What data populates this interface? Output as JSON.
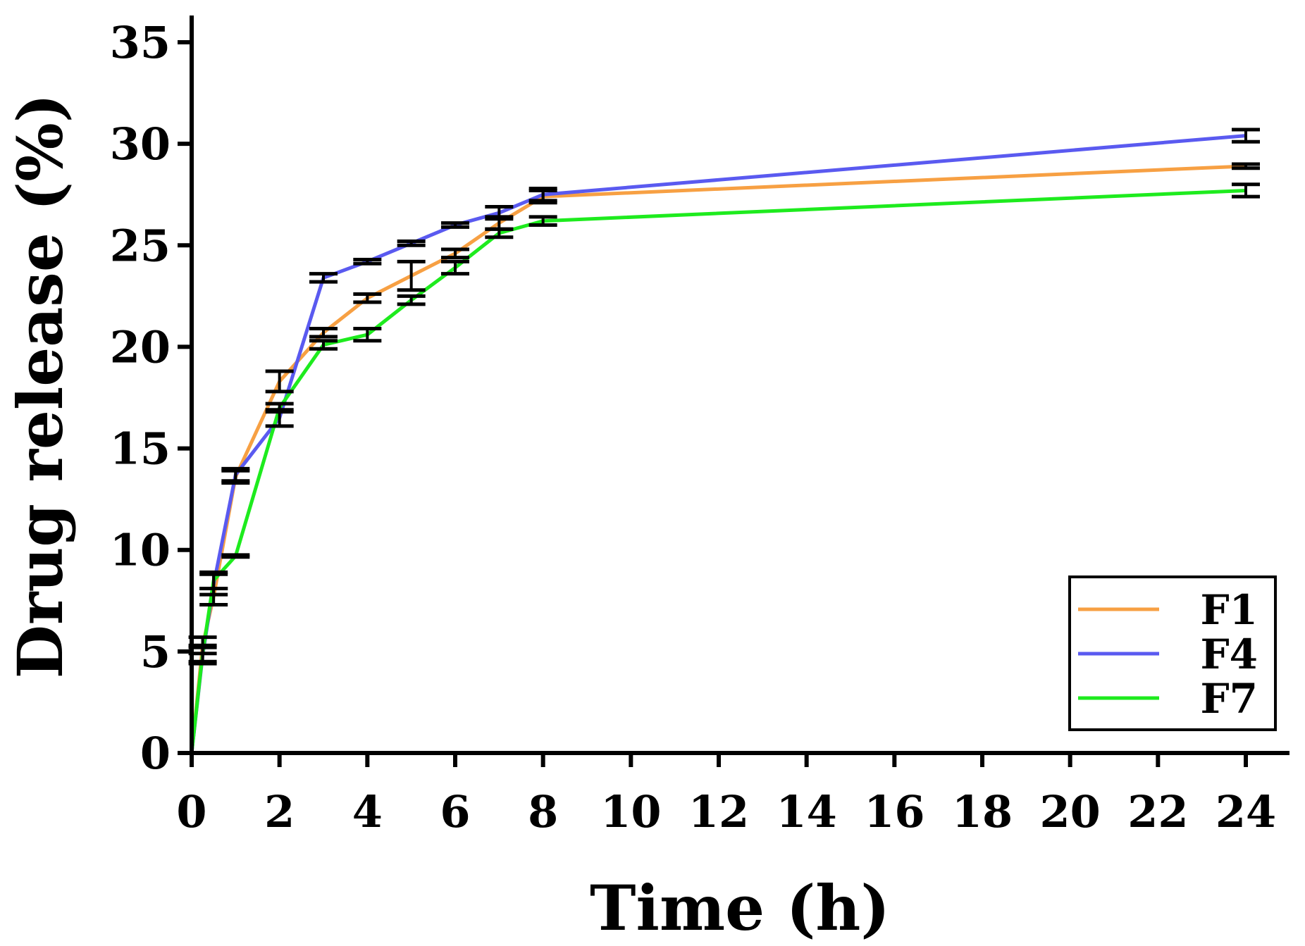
{
  "chart_data": {
    "type": "line",
    "title": "",
    "xlabel": "Time (h)",
    "ylabel": "Drug release (%)",
    "xlim": [
      0,
      24
    ],
    "ylim": [
      0,
      36
    ],
    "xticks": [
      0,
      2,
      4,
      6,
      8,
      10,
      12,
      14,
      16,
      18,
      20,
      22,
      24
    ],
    "yticks": [
      0,
      5,
      10,
      15,
      20,
      25,
      30,
      35
    ],
    "grid": false,
    "legend_position": "bottom-right",
    "x": [
      0,
      0.25,
      0.5,
      1,
      2,
      3,
      4,
      5,
      6,
      7,
      8,
      24
    ],
    "series": [
      {
        "name": "F1",
        "color": "#f7a043",
        "values": [
          0,
          5.3,
          7.7,
          13.6,
          18.3,
          20.7,
          22.4,
          23.5,
          24.6,
          26.1,
          27.4,
          28.9
        ],
        "errors": [
          0,
          0.4,
          0.4,
          0.3,
          0.5,
          0.2,
          0.2,
          0.7,
          0.2,
          0.3,
          0.3,
          0.1
        ]
      },
      {
        "name": "F4",
        "color": "#5a5af0",
        "values": [
          0,
          4.8,
          8.3,
          13.7,
          16.5,
          23.4,
          24.2,
          25.1,
          26.0,
          26.6,
          27.5,
          30.4
        ],
        "errors": [
          0,
          0.4,
          0.5,
          0.3,
          0.4,
          0.2,
          0.1,
          0.1,
          0.1,
          0.3,
          0.3,
          0.3
        ]
      },
      {
        "name": "F7",
        "color": "#1eeb1e",
        "values": [
          0,
          4.9,
          8.5,
          9.7,
          17.0,
          20.1,
          20.6,
          22.3,
          23.9,
          25.6,
          26.2,
          27.7
        ],
        "errors": [
          0,
          0.4,
          0.4,
          0.05,
          0.2,
          0.2,
          0.3,
          0.2,
          0.3,
          0.2,
          0.2,
          0.3
        ]
      }
    ]
  }
}
